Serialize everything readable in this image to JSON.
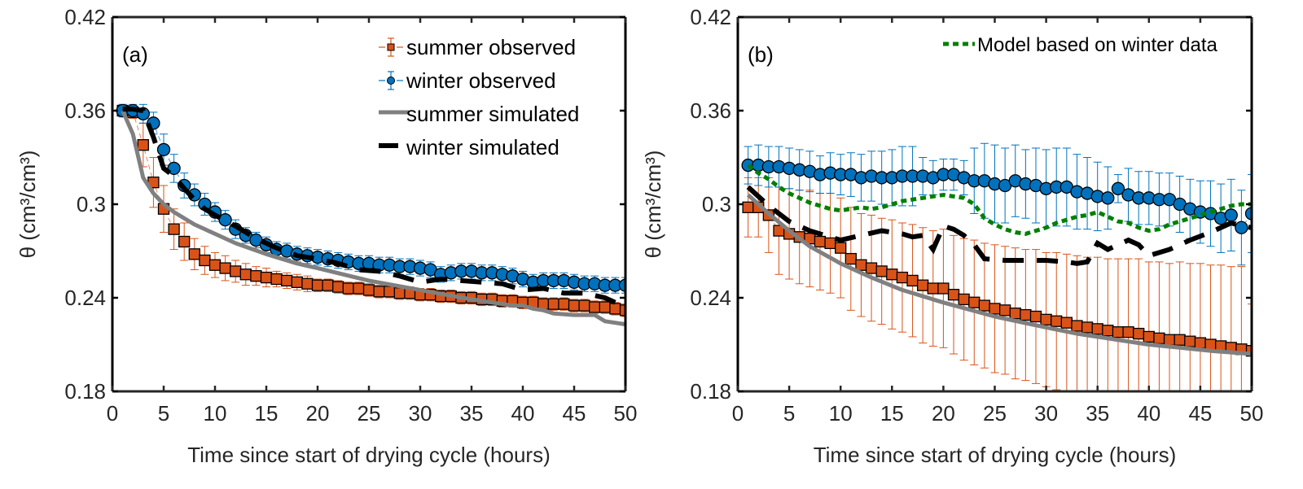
{
  "chart_data": [
    {
      "type": "line",
      "panel_label": "(a)",
      "xlabel": "Time since start of drying cycle (hours)",
      "ylabel": "θ (cm³/cm³)",
      "xlim": [
        0,
        50
      ],
      "ylim": [
        0.18,
        0.42
      ],
      "xticks": [
        0,
        5,
        10,
        15,
        20,
        25,
        30,
        35,
        40,
        45,
        50
      ],
      "yticks": [
        0.18,
        0.24,
        0.3,
        0.36,
        0.42
      ],
      "ytick_labels": [
        "0.18",
        "0.24",
        "0.3",
        "0.36",
        "0.42"
      ],
      "grid": false,
      "legend": "top-right",
      "series": [
        {
          "name": "summer observed",
          "style": "errorbar-square",
          "color": "#D95319",
          "x": [
            1,
            2,
            3,
            4,
            5,
            6,
            7,
            8,
            9,
            10,
            11,
            12,
            13,
            14,
            15,
            16,
            17,
            18,
            19,
            20,
            21,
            22,
            23,
            24,
            25,
            26,
            27,
            28,
            29,
            30,
            31,
            32,
            33,
            34,
            35,
            36,
            37,
            38,
            39,
            40,
            41,
            42,
            43,
            44,
            45,
            46,
            47,
            48,
            49,
            50
          ],
          "y": [
            0.36,
            0.359,
            0.338,
            0.314,
            0.297,
            0.284,
            0.276,
            0.268,
            0.264,
            0.261,
            0.259,
            0.257,
            0.255,
            0.254,
            0.253,
            0.252,
            0.251,
            0.25,
            0.249,
            0.248,
            0.248,
            0.247,
            0.246,
            0.246,
            0.245,
            0.244,
            0.244,
            0.243,
            0.243,
            0.242,
            0.242,
            0.241,
            0.241,
            0.24,
            0.24,
            0.239,
            0.239,
            0.238,
            0.238,
            0.237,
            0.237,
            0.236,
            0.236,
            0.236,
            0.235,
            0.235,
            0.234,
            0.234,
            0.233,
            0.232
          ],
          "err": [
            0.004,
            0.004,
            0.014,
            0.016,
            0.015,
            0.013,
            0.012,
            0.01,
            0.009,
            0.008,
            0.008,
            0.007,
            0.007,
            0.006,
            0.006,
            0.005,
            0.005,
            0.005,
            0.005,
            0.004,
            0.004,
            0.004,
            0.004,
            0.004,
            0.004,
            0.004,
            0.004,
            0.004,
            0.004,
            0.004,
            0.004,
            0.004,
            0.004,
            0.004,
            0.004,
            0.004,
            0.004,
            0.004,
            0.004,
            0.004,
            0.004,
            0.004,
            0.004,
            0.004,
            0.004,
            0.004,
            0.004,
            0.004,
            0.004,
            0.004
          ]
        },
        {
          "name": "winter observed",
          "style": "errorbar-circle",
          "color": "#0072BD",
          "x": [
            1,
            2,
            3,
            4,
            5,
            6,
            7,
            8,
            9,
            10,
            11,
            12,
            13,
            14,
            15,
            16,
            17,
            18,
            19,
            20,
            21,
            22,
            23,
            24,
            25,
            26,
            27,
            28,
            29,
            30,
            31,
            32,
            33,
            34,
            35,
            36,
            37,
            38,
            39,
            40,
            41,
            42,
            43,
            44,
            45,
            46,
            47,
            48,
            49,
            50
          ],
          "y": [
            0.36,
            0.36,
            0.358,
            0.352,
            0.335,
            0.323,
            0.312,
            0.306,
            0.3,
            0.295,
            0.29,
            0.284,
            0.28,
            0.277,
            0.274,
            0.271,
            0.27,
            0.268,
            0.267,
            0.266,
            0.265,
            0.264,
            0.263,
            0.262,
            0.262,
            0.261,
            0.261,
            0.26,
            0.26,
            0.259,
            0.258,
            0.255,
            0.256,
            0.257,
            0.257,
            0.256,
            0.256,
            0.255,
            0.254,
            0.252,
            0.25,
            0.251,
            0.251,
            0.251,
            0.25,
            0.249,
            0.249,
            0.248,
            0.248,
            0.248
          ],
          "err": [
            0.004,
            0.004,
            0.006,
            0.007,
            0.01,
            0.009,
            0.008,
            0.007,
            0.007,
            0.006,
            0.006,
            0.006,
            0.005,
            0.005,
            0.005,
            0.005,
            0.005,
            0.005,
            0.005,
            0.005,
            0.005,
            0.005,
            0.005,
            0.005,
            0.005,
            0.005,
            0.005,
            0.005,
            0.005,
            0.005,
            0.005,
            0.005,
            0.005,
            0.005,
            0.005,
            0.005,
            0.005,
            0.005,
            0.005,
            0.005,
            0.005,
            0.005,
            0.005,
            0.005,
            0.005,
            0.005,
            0.005,
            0.005,
            0.005,
            0.005
          ]
        },
        {
          "name": "summer simulated",
          "style": "solid",
          "color": "#808080",
          "x": [
            1,
            2,
            3,
            4,
            5,
            6,
            8,
            10,
            12,
            15,
            18,
            20,
            25,
            30,
            35,
            38,
            39,
            40,
            41,
            42,
            43,
            45,
            46,
            47,
            48,
            49,
            50
          ],
          "y": [
            0.36,
            0.345,
            0.317,
            0.307,
            0.3,
            0.295,
            0.287,
            0.281,
            0.275,
            0.268,
            0.262,
            0.259,
            0.251,
            0.245,
            0.239,
            0.236,
            0.235,
            0.235,
            0.233,
            0.232,
            0.23,
            0.229,
            0.229,
            0.229,
            0.225,
            0.224,
            0.223
          ]
        },
        {
          "name": "winter simulated",
          "style": "dashed",
          "color": "#000000",
          "x": [
            1,
            2,
            3,
            4,
            5,
            6,
            7,
            8,
            9,
            10,
            12,
            14,
            16,
            18,
            20,
            22,
            24,
            26,
            28,
            30,
            32,
            34,
            36,
            38,
            40,
            42,
            44,
            46,
            48,
            50
          ],
          "y": [
            0.361,
            0.361,
            0.36,
            0.343,
            0.323,
            0.318,
            0.31,
            0.303,
            0.297,
            0.293,
            0.286,
            0.278,
            0.272,
            0.267,
            0.265,
            0.262,
            0.258,
            0.257,
            0.254,
            0.25,
            0.252,
            0.251,
            0.25,
            0.249,
            0.245,
            0.246,
            0.243,
            0.243,
            0.24,
            0.234
          ]
        }
      ]
    },
    {
      "type": "line",
      "panel_label": "(b)",
      "xlabel": "Time since start of drying cycle (hours)",
      "ylabel": "θ (cm³/cm³)",
      "xlim": [
        0,
        50
      ],
      "ylim": [
        0.18,
        0.42
      ],
      "xticks": [
        0,
        5,
        10,
        15,
        20,
        25,
        30,
        35,
        40,
        45,
        50
      ],
      "yticks": [
        0.18,
        0.24,
        0.3,
        0.36,
        0.42
      ],
      "ytick_labels": [
        "0.18",
        "0.24",
        "0.3",
        "0.36",
        "0.42"
      ],
      "grid": false,
      "legend": "top-right",
      "series": [
        {
          "name": "summer observed",
          "style": "errorbar-square",
          "color": "#D95319",
          "x": [
            1,
            2,
            3,
            4,
            5,
            6,
            7,
            8,
            9,
            10,
            11,
            12,
            13,
            14,
            15,
            16,
            17,
            18,
            19,
            20,
            21,
            22,
            23,
            24,
            25,
            26,
            27,
            28,
            29,
            30,
            31,
            32,
            33,
            34,
            35,
            36,
            37,
            38,
            39,
            40,
            41,
            42,
            43,
            44,
            45,
            46,
            47,
            48,
            49,
            50
          ],
          "y": [
            0.298,
            0.298,
            0.293,
            0.283,
            0.281,
            0.279,
            0.278,
            0.276,
            0.275,
            0.272,
            0.265,
            0.261,
            0.259,
            0.257,
            0.255,
            0.253,
            0.251,
            0.248,
            0.246,
            0.246,
            0.242,
            0.239,
            0.237,
            0.235,
            0.233,
            0.232,
            0.23,
            0.229,
            0.228,
            0.226,
            0.225,
            0.224,
            0.222,
            0.221,
            0.22,
            0.219,
            0.218,
            0.218,
            0.217,
            0.215,
            0.214,
            0.213,
            0.213,
            0.212,
            0.211,
            0.21,
            0.209,
            0.208,
            0.207,
            0.206
          ],
          "err": [
            0.019,
            0.019,
            0.024,
            0.028,
            0.029,
            0.03,
            0.031,
            0.031,
            0.032,
            0.032,
            0.033,
            0.033,
            0.034,
            0.034,
            0.035,
            0.035,
            0.036,
            0.037,
            0.037,
            0.038,
            0.038,
            0.039,
            0.04,
            0.04,
            0.041,
            0.041,
            0.042,
            0.042,
            0.043,
            0.043,
            0.044,
            0.044,
            0.045,
            0.045,
            0.046,
            0.046,
            0.047,
            0.047,
            0.048,
            0.048,
            0.049,
            0.049,
            0.05,
            0.05,
            0.051,
            0.051,
            0.052,
            0.052,
            0.053,
            0.03
          ]
        },
        {
          "name": "winter observed",
          "style": "errorbar-circle",
          "color": "#0072BD",
          "x": [
            1,
            2,
            3,
            4,
            5,
            6,
            7,
            8,
            9,
            10,
            11,
            12,
            13,
            14,
            15,
            16,
            17,
            18,
            19,
            20,
            21,
            22,
            23,
            24,
            25,
            26,
            27,
            28,
            29,
            30,
            31,
            32,
            33,
            34,
            35,
            36,
            37,
            38,
            39,
            40,
            41,
            42,
            43,
            44,
            45,
            46,
            47,
            48,
            49,
            50
          ],
          "y": [
            0.325,
            0.325,
            0.324,
            0.324,
            0.323,
            0.322,
            0.321,
            0.319,
            0.32,
            0.319,
            0.319,
            0.317,
            0.318,
            0.317,
            0.317,
            0.318,
            0.318,
            0.318,
            0.317,
            0.319,
            0.319,
            0.317,
            0.315,
            0.315,
            0.313,
            0.312,
            0.315,
            0.313,
            0.312,
            0.31,
            0.311,
            0.311,
            0.308,
            0.307,
            0.305,
            0.304,
            0.31,
            0.306,
            0.304,
            0.304,
            0.303,
            0.303,
            0.3,
            0.297,
            0.295,
            0.294,
            0.291,
            0.293,
            0.285,
            0.294
          ],
          "err": [
            0.012,
            0.013,
            0.013,
            0.013,
            0.013,
            0.013,
            0.013,
            0.012,
            0.013,
            0.013,
            0.014,
            0.015,
            0.016,
            0.017,
            0.018,
            0.019,
            0.019,
            0.012,
            0.011,
            0.01,
            0.01,
            0.011,
            0.021,
            0.024,
            0.025,
            0.024,
            0.023,
            0.022,
            0.024,
            0.025,
            0.025,
            0.025,
            0.024,
            0.023,
            0.022,
            0.02,
            0.009,
            0.017,
            0.017,
            0.017,
            0.017,
            0.017,
            0.018,
            0.019,
            0.02,
            0.021,
            0.022,
            0.023,
            0.024,
            0.025
          ]
        },
        {
          "name": "summer simulated",
          "style": "solid",
          "color": "#808080",
          "x": [
            1,
            3,
            5,
            7,
            10,
            13,
            16,
            20,
            25,
            30,
            33,
            35,
            37,
            40,
            43,
            46,
            48,
            50
          ],
          "y": [
            0.306,
            0.294,
            0.283,
            0.273,
            0.262,
            0.253,
            0.245,
            0.237,
            0.228,
            0.221,
            0.217,
            0.215,
            0.213,
            0.21,
            0.208,
            0.206,
            0.205,
            0.204
          ]
        },
        {
          "name": "winter simulated",
          "style": "dashed",
          "color": "#000000",
          "x": [
            1,
            3,
            5,
            7,
            9,
            10,
            12,
            14,
            16,
            17,
            18,
            19,
            20,
            21,
            22,
            23,
            24,
            26,
            28,
            30,
            32,
            33,
            34,
            35,
            36,
            37,
            38,
            39,
            40,
            42,
            44,
            46,
            48,
            49,
            50
          ],
          "y": [
            0.311,
            0.299,
            0.289,
            0.283,
            0.279,
            0.277,
            0.28,
            0.283,
            0.281,
            0.279,
            0.28,
            0.271,
            0.286,
            0.284,
            0.28,
            0.274,
            0.265,
            0.264,
            0.264,
            0.264,
            0.263,
            0.262,
            0.263,
            0.275,
            0.271,
            0.274,
            0.277,
            0.274,
            0.267,
            0.271,
            0.277,
            0.282,
            0.288,
            0.286,
            0.285
          ]
        },
        {
          "name": "Model based on winter data",
          "style": "dotted",
          "color": "#008000",
          "x": [
            1,
            2,
            3,
            4,
            5,
            6,
            7,
            8,
            9,
            10,
            11,
            12,
            13,
            14,
            15,
            16,
            17,
            18,
            19,
            20,
            21,
            22,
            23,
            24,
            25,
            26,
            27,
            28,
            29,
            30,
            31,
            32,
            33,
            34,
            35,
            36,
            37,
            38,
            39,
            40,
            41,
            42,
            43,
            44,
            45,
            46,
            47,
            48,
            49,
            50
          ],
          "y": [
            0.325,
            0.32,
            0.316,
            0.311,
            0.307,
            0.304,
            0.301,
            0.299,
            0.297,
            0.296,
            0.297,
            0.298,
            0.297,
            0.298,
            0.3,
            0.302,
            0.303,
            0.304,
            0.305,
            0.306,
            0.305,
            0.304,
            0.3,
            0.291,
            0.287,
            0.284,
            0.282,
            0.281,
            0.283,
            0.285,
            0.288,
            0.29,
            0.292,
            0.293,
            0.295,
            0.292,
            0.289,
            0.288,
            0.285,
            0.283,
            0.284,
            0.287,
            0.289,
            0.291,
            0.293,
            0.295,
            0.297,
            0.299,
            0.3,
            0.3
          ]
        }
      ]
    }
  ]
}
